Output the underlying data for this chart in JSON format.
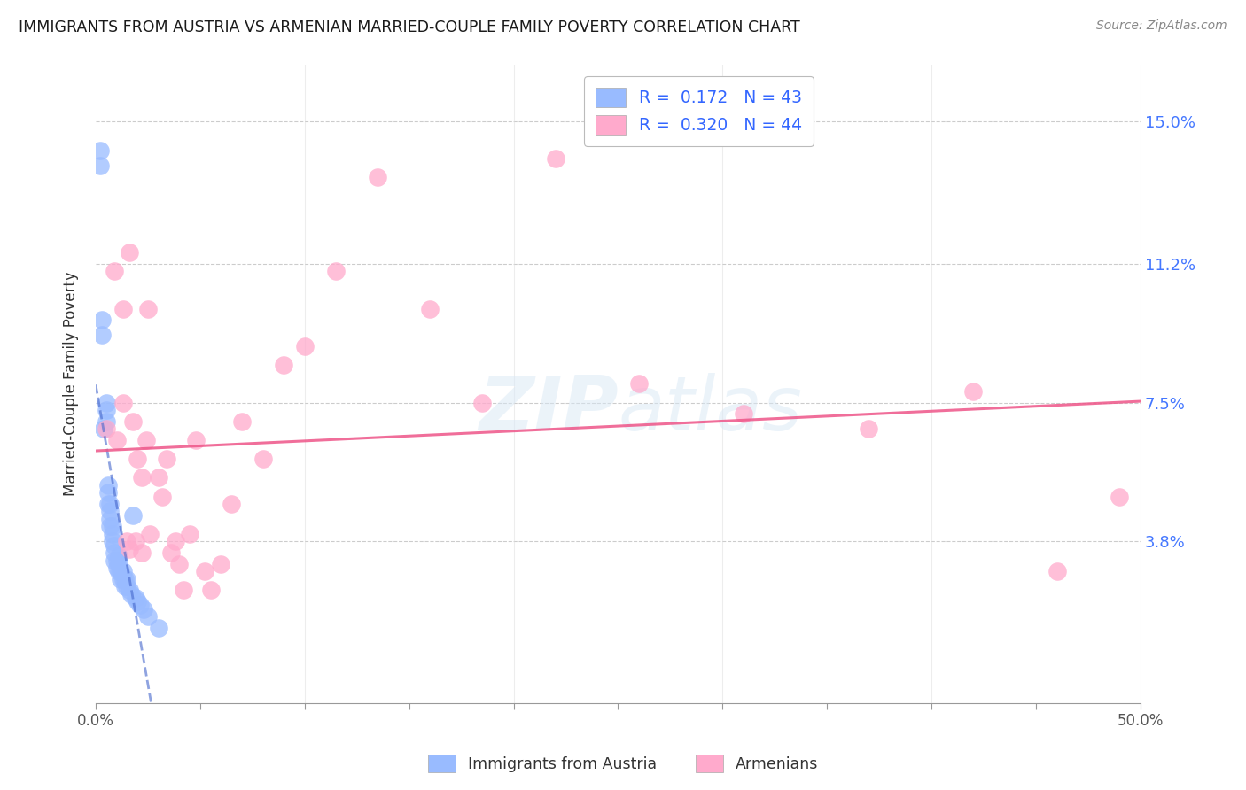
{
  "title": "IMMIGRANTS FROM AUSTRIA VS ARMENIAN MARRIED-COUPLE FAMILY POVERTY CORRELATION CHART",
  "source": "Source: ZipAtlas.com",
  "ylabel": "Married-Couple Family Poverty",
  "ytick_labels": [
    "3.8%",
    "7.5%",
    "11.2%",
    "15.0%"
  ],
  "ytick_values": [
    0.038,
    0.075,
    0.112,
    0.15
  ],
  "xlim": [
    0.0,
    0.5
  ],
  "ylim": [
    -0.005,
    0.165
  ],
  "color_blue": "#99bbff",
  "color_pink": "#ffaacc",
  "color_blue_line": "#4466cc",
  "color_pink_line": "#ee5588",
  "watermark_zip": "ZIP",
  "watermark_atlas": "atlas",
  "blue_x": [
    0.002,
    0.002,
    0.003,
    0.003,
    0.004,
    0.005,
    0.005,
    0.005,
    0.006,
    0.006,
    0.006,
    0.007,
    0.007,
    0.007,
    0.007,
    0.008,
    0.008,
    0.008,
    0.009,
    0.009,
    0.009,
    0.01,
    0.01,
    0.011,
    0.011,
    0.011,
    0.012,
    0.012,
    0.013,
    0.013,
    0.014,
    0.014,
    0.015,
    0.015,
    0.016,
    0.017,
    0.018,
    0.019,
    0.02,
    0.021,
    0.023,
    0.025,
    0.03
  ],
  "blue_y": [
    0.138,
    0.142,
    0.093,
    0.097,
    0.068,
    0.07,
    0.073,
    0.075,
    0.048,
    0.051,
    0.053,
    0.042,
    0.044,
    0.046,
    0.048,
    0.038,
    0.04,
    0.042,
    0.033,
    0.035,
    0.037,
    0.031,
    0.033,
    0.03,
    0.032,
    0.034,
    0.028,
    0.03,
    0.028,
    0.03,
    0.026,
    0.028,
    0.026,
    0.028,
    0.025,
    0.024,
    0.045,
    0.023,
    0.022,
    0.021,
    0.02,
    0.018,
    0.015
  ],
  "pink_x": [
    0.005,
    0.009,
    0.01,
    0.013,
    0.013,
    0.015,
    0.016,
    0.016,
    0.018,
    0.019,
    0.02,
    0.022,
    0.022,
    0.024,
    0.025,
    0.026,
    0.03,
    0.032,
    0.034,
    0.036,
    0.038,
    0.04,
    0.042,
    0.045,
    0.048,
    0.052,
    0.055,
    0.06,
    0.065,
    0.07,
    0.08,
    0.09,
    0.1,
    0.115,
    0.135,
    0.16,
    0.185,
    0.22,
    0.26,
    0.31,
    0.37,
    0.42,
    0.46,
    0.49
  ],
  "pink_y": [
    0.068,
    0.11,
    0.065,
    0.1,
    0.075,
    0.038,
    0.115,
    0.036,
    0.07,
    0.038,
    0.06,
    0.055,
    0.035,
    0.065,
    0.1,
    0.04,
    0.055,
    0.05,
    0.06,
    0.035,
    0.038,
    0.032,
    0.025,
    0.04,
    0.065,
    0.03,
    0.025,
    0.032,
    0.048,
    0.07,
    0.06,
    0.085,
    0.09,
    0.11,
    0.135,
    0.1,
    0.075,
    0.14,
    0.08,
    0.072,
    0.068,
    0.078,
    0.03,
    0.05
  ]
}
